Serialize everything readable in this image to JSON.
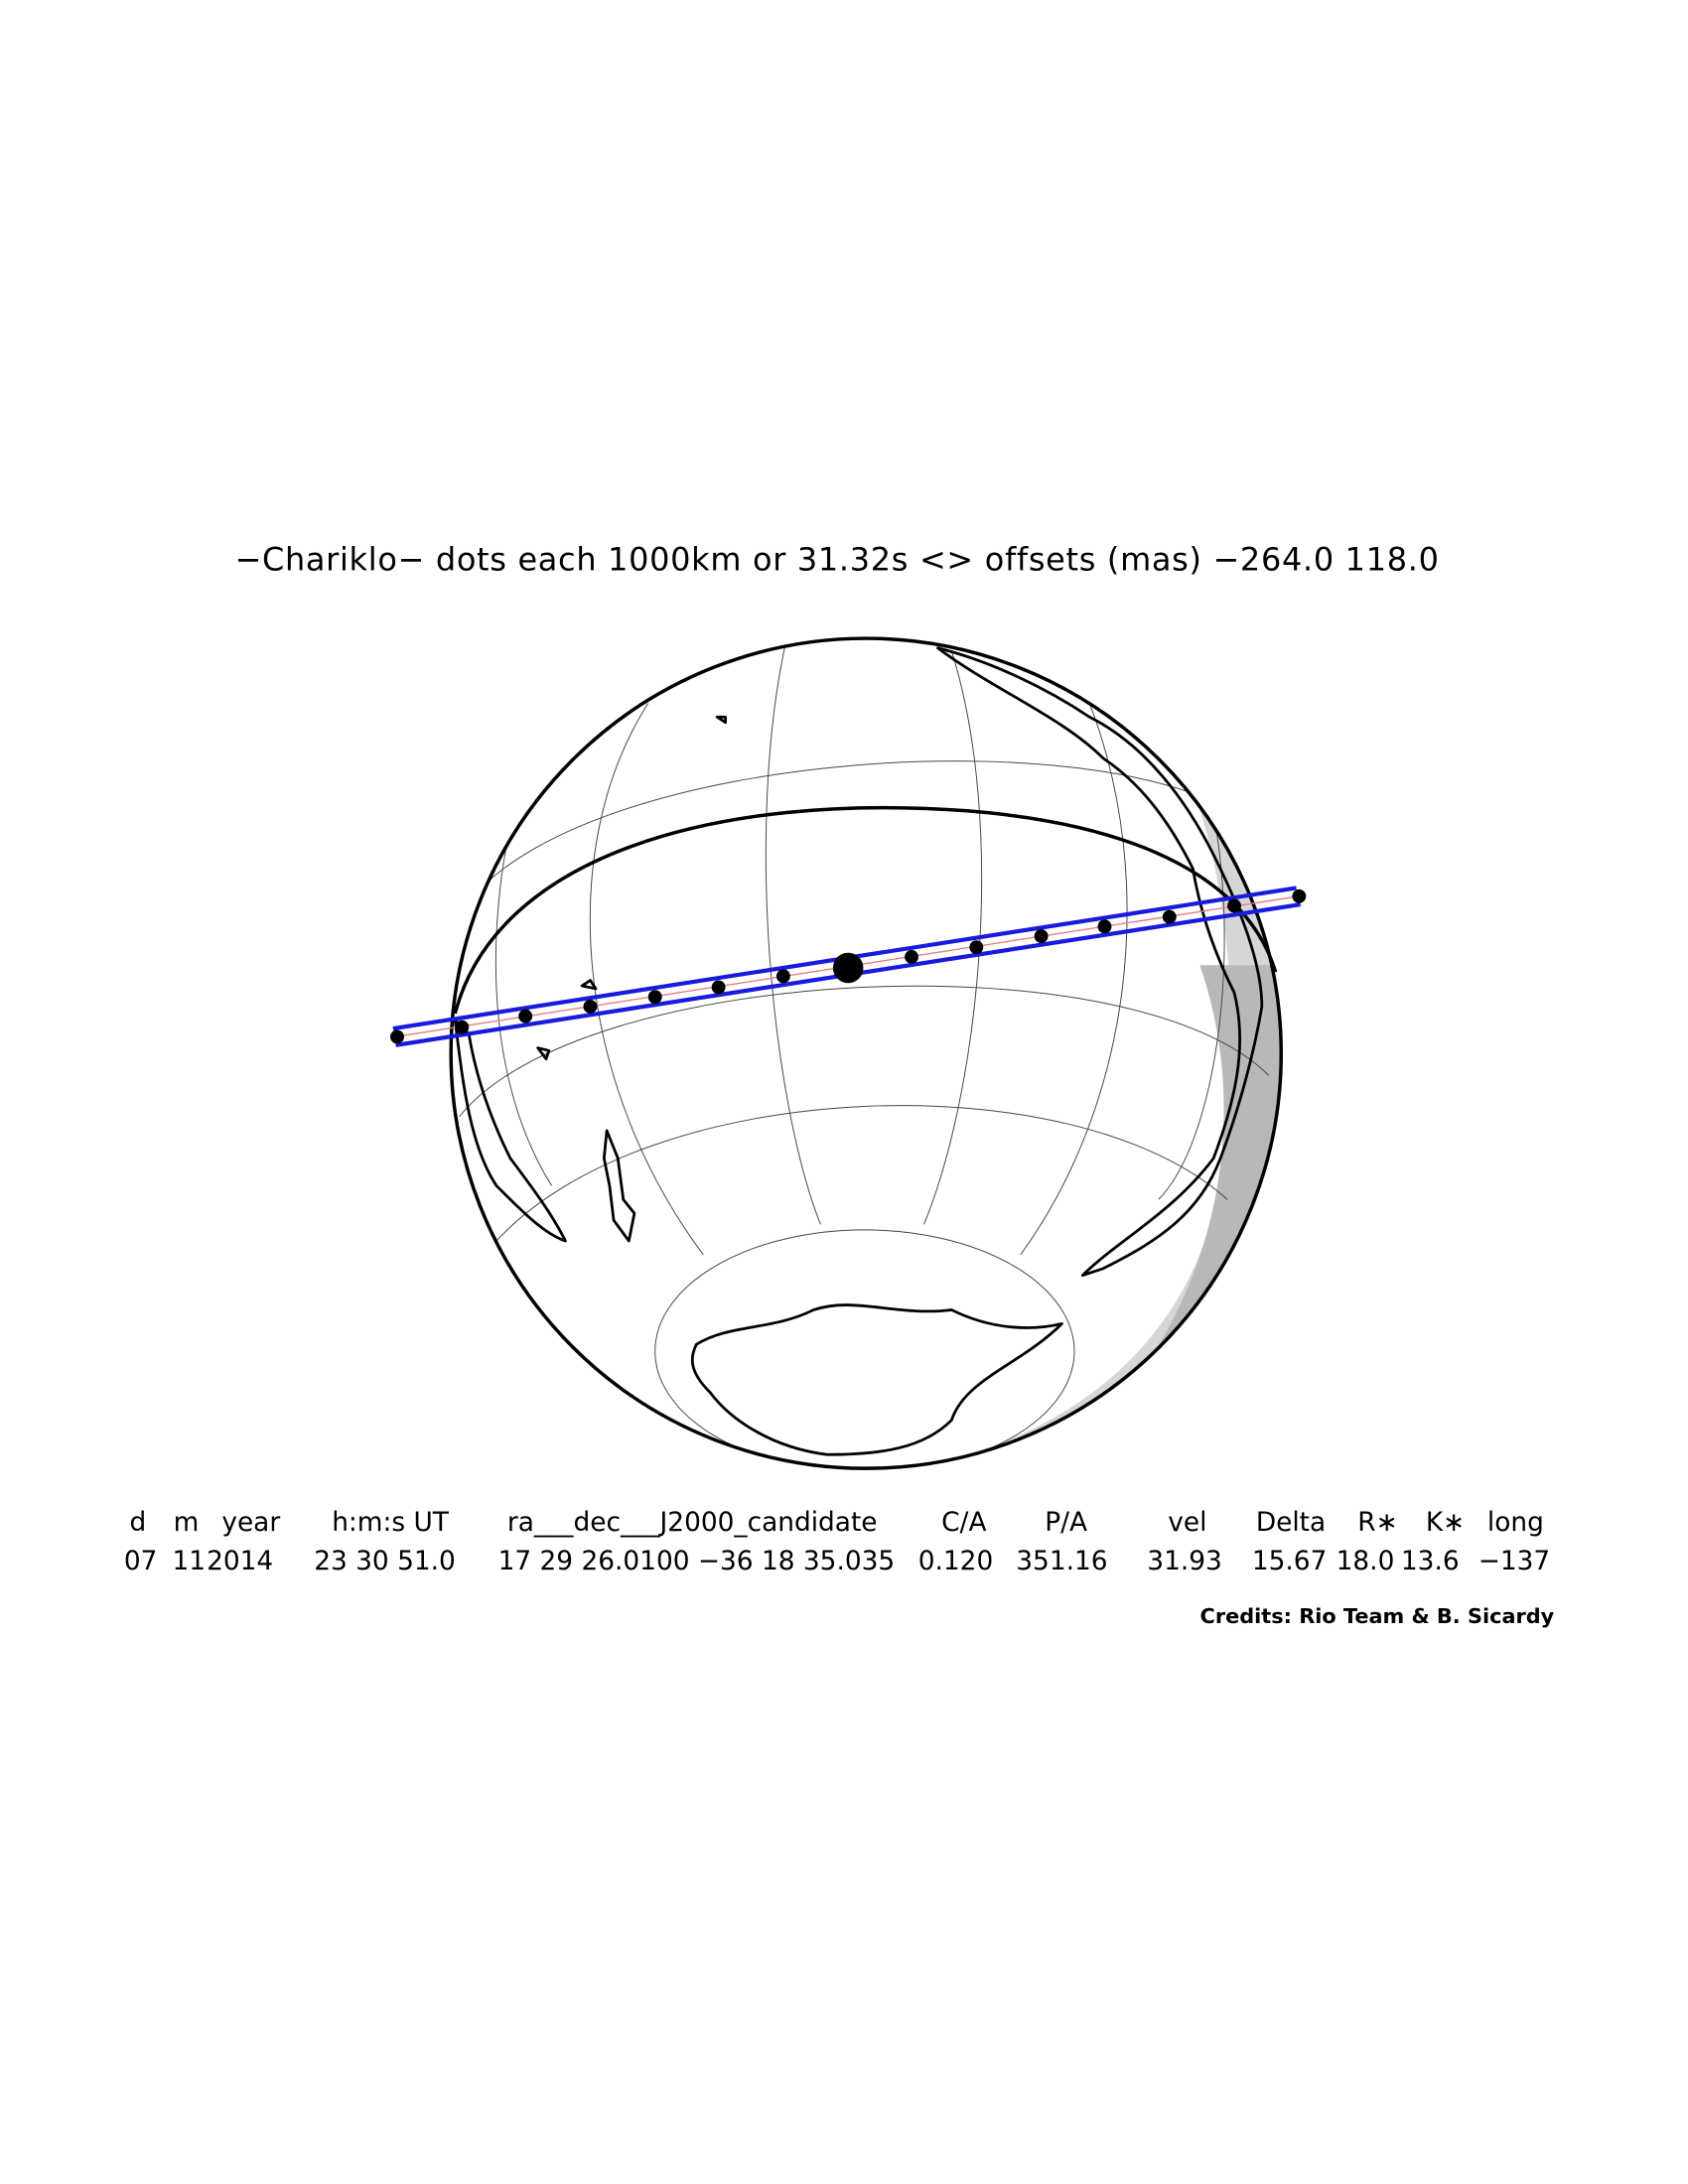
{
  "title": "−Chariklo−  dots each 1000km or 31.32s <> offsets (mas) −264.0   118.0",
  "table": {
    "header": [
      "d",
      "m",
      "year",
      "h:m:s UT",
      "ra___dec___J2000_candidate",
      "C/A",
      "P/A",
      "vel",
      "Delta",
      "R∗",
      "K∗",
      "long"
    ],
    "row": [
      "07",
      "11",
      "2014",
      "23 30 51.0",
      "17 29 26.0100 −36 18 35.035",
      "0.120",
      "351.16",
      "31.93",
      "15.67",
      "18.0",
      "13.6",
      "−137"
    ]
  },
  "credits": "Credits: Rio Team & B. Sicardy"
}
